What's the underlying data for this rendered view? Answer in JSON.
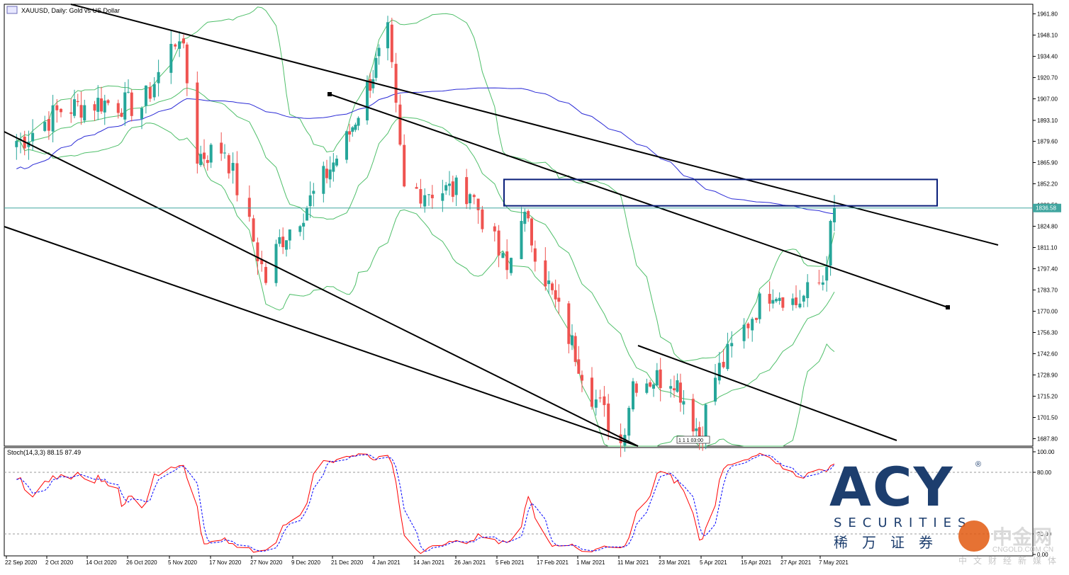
{
  "window_title": "XAUUSD, Daily:  Gold vs US Dollar",
  "price_axis_labels": [
    "1961.80",
    "1948.10",
    "1934.40",
    "1920.70",
    "1907.00",
    "1893.10",
    "1879.60",
    "1865.90",
    "1852.20",
    "1838.50",
    "1824.80",
    "1811.10",
    "1797.40",
    "1783.70",
    "1770.00",
    "1756.30",
    "1742.60",
    "1728.90",
    "1715.20",
    "1701.50",
    "1687.80"
  ],
  "current_price_label": "1836.58",
  "date_labels": [
    "22 Sep 2020",
    "2 Oct 2020",
    "14 Oct 2020",
    "26 Oct 2020",
    "5 Nov 2020",
    "17 Nov 2020",
    "27 Nov 2020",
    "9 Dec 2020",
    "21 Dec 2020",
    "4 Jan 2021",
    "14 Jan 2021",
    "26 Jan 2021",
    "5 Feb 2021",
    "17 Feb 2021",
    "1 Mar 2021",
    "11 Mar 2021",
    "23 Mar 2021",
    "5 Apr 2021",
    "15 Apr 2021",
    "27 Apr 2021",
    "7 May 2021"
  ],
  "marker_label": "1 1 1 03:00",
  "stoch_title": "Stoch(14,3,3) 88.15 87.49",
  "stoch_axis_labels": [
    "100.00",
    "80.00",
    "20.00",
    "0.00"
  ],
  "logo": {
    "brand": "ACY",
    "registered": "®",
    "securities": "SECURITIES",
    "cn_name": "稀万证券"
  },
  "watermark": {
    "brand": "中金网",
    "url": "CNGOLD.COM.CN",
    "cn": "中文财经新媒体"
  },
  "colors": {
    "bull": "#26a69a",
    "bear": "#ef5350",
    "bollinger": "#4fbf6a",
    "ma": "#2b2bd6",
    "channel": "#000000",
    "box": "#0a1f7a",
    "stoch_main": "#ff0000",
    "stoch_signal": "#0000ff",
    "price_line": "#41a6a0"
  },
  "chart_data": [
    {
      "type": "candlestick",
      "title": "XAUUSD, Daily:  Gold vs US Dollar",
      "symbol": "XAUUSD",
      "timeframe": "Daily",
      "x_range": [
        "22 Sep 2020",
        "7 May 2021"
      ],
      "y_range": [
        1683,
        1968
      ],
      "current_price": 1836.58,
      "series": [
        {
          "name": "Price",
          "kind": "candles",
          "anchors": [
            {
              "date": "22 Sep 2020",
              "close": 1880
            },
            {
              "date": "2 Oct 2020",
              "close": 1900
            },
            {
              "date": "14 Oct 2020",
              "close": 1905
            },
            {
              "date": "26 Oct 2020",
              "close": 1902
            },
            {
              "date": "4 Nov 2020",
              "close": 1950
            },
            {
              "date": "9 Nov 2020",
              "close": 1870
            },
            {
              "date": "17 Nov 2020",
              "close": 1875
            },
            {
              "date": "27 Nov 2020",
              "close": 1790
            },
            {
              "date": "1 Dec 2020",
              "close": 1815
            },
            {
              "date": "9 Dec 2020",
              "close": 1838
            },
            {
              "date": "21 Dec 2020",
              "close": 1880
            },
            {
              "date": "4 Jan 2021",
              "close": 1948
            },
            {
              "date": "8 Jan 2021",
              "close": 1848
            },
            {
              "date": "14 Jan 2021",
              "close": 1848
            },
            {
              "date": "26 Jan 2021",
              "close": 1848
            },
            {
              "date": "4 Feb 2021",
              "close": 1795
            },
            {
              "date": "8 Feb 2021",
              "close": 1835
            },
            {
              "date": "17 Feb 2021",
              "close": 1780
            },
            {
              "date": "1 Mar 2021",
              "close": 1717
            },
            {
              "date": "8 Mar 2021",
              "close": 1685
            },
            {
              "date": "11 Mar 2021",
              "close": 1725
            },
            {
              "date": "23 Mar 2021",
              "close": 1728
            },
            {
              "date": "31 Mar 2021",
              "close": 1690
            },
            {
              "date": "5 Apr 2021",
              "close": 1728
            },
            {
              "date": "15 Apr 2021",
              "close": 1772
            },
            {
              "date": "20 Apr 2021",
              "close": 1785
            },
            {
              "date": "27 Apr 2021",
              "close": 1775
            },
            {
              "date": "4 May 2021",
              "close": 1790
            },
            {
              "date": "7 May 2021",
              "close": 1836.58
            }
          ]
        },
        {
          "name": "MA",
          "kind": "line"
        },
        {
          "name": "Bollinger Bands",
          "kind": "band"
        }
      ],
      "annotations": [
        {
          "type": "descending_channel",
          "lines": 4
        },
        {
          "type": "rectangle",
          "price_range": [
            1838,
            1855
          ],
          "date_range": [
            "5 Feb 2021",
            "7 May 2021"
          ]
        }
      ]
    },
    {
      "type": "line",
      "title": "Stoch(14,3,3) 88.15 87.49",
      "ylim": [
        0,
        100
      ],
      "levels": [
        20,
        80
      ],
      "series": [
        {
          "name": "%K",
          "last": 88.15
        },
        {
          "name": "%D",
          "last": 87.49
        }
      ]
    }
  ]
}
